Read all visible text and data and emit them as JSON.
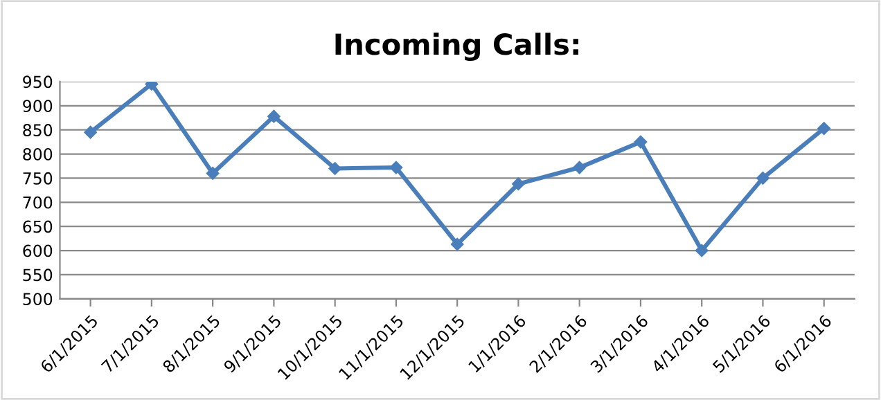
{
  "chart_data": {
    "type": "line",
    "title": "Incoming Calls:",
    "categories": [
      "6/1/2015",
      "7/1/2015",
      "8/1/2015",
      "9/1/2015",
      "10/1/2015",
      "11/1/2015",
      "12/1/2015",
      "1/1/2016",
      "2/1/2016",
      "3/1/2016",
      "4/1/2016",
      "5/1/2016",
      "6/1/2016"
    ],
    "series": [
      {
        "color": "#4a7ebb",
        "values": [
          845,
          945,
          760,
          878,
          770,
          772,
          613,
          738,
          772,
          825,
          600,
          750,
          853
        ]
      }
    ],
    "ylim": [
      500,
      950
    ],
    "yticks": [
      500,
      550,
      600,
      650,
      700,
      750,
      800,
      850,
      900,
      950
    ],
    "grid": "y",
    "marker": "diamond",
    "line_style": "solid"
  }
}
